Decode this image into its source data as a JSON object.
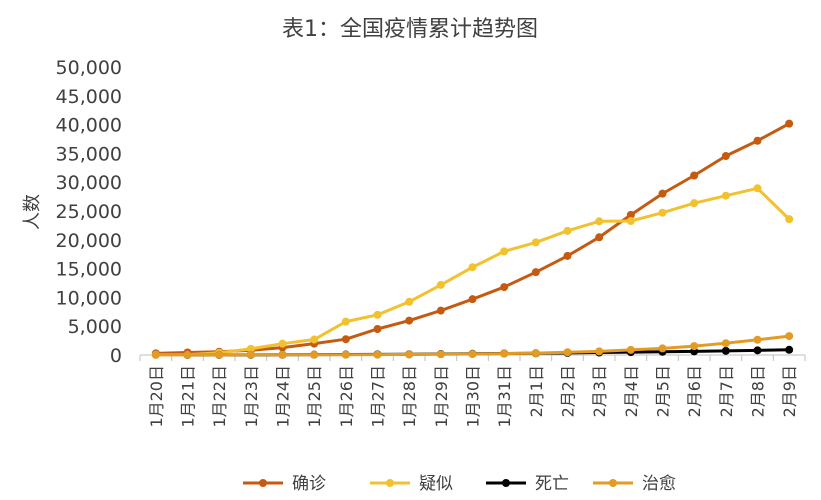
{
  "chart_data": {
    "type": "line",
    "title": "表1：全国疫情累计趋势图",
    "xlabel": "",
    "ylabel": "人数",
    "ylim": [
      0,
      50000
    ],
    "yticks": [
      0,
      5000,
      10000,
      15000,
      20000,
      25000,
      30000,
      35000,
      40000,
      45000,
      50000
    ],
    "ytick_labels": [
      "0",
      "5,000",
      "10,000",
      "15,000",
      "20,000",
      "25,000",
      "30,000",
      "35,000",
      "40,000",
      "45,000",
      "50,000"
    ],
    "grid": false,
    "legend_position": "bottom",
    "categories": [
      "1月20日",
      "1月21日",
      "1月22日",
      "1月23日",
      "1月24日",
      "1月25日",
      "1月26日",
      "1月27日",
      "1月28日",
      "1月29日",
      "1月30日",
      "1月31日",
      "2月1日",
      "2月2日",
      "2月3日",
      "2月4日",
      "2月5日",
      "2月6日",
      "2月7日",
      "2月8日",
      "2月9日"
    ],
    "series": [
      {
        "name": "确诊",
        "color": "#c55a11",
        "values": [
          291,
          440,
          571,
          830,
          1287,
          1975,
          2744,
          4515,
          5974,
          7711,
          9692,
          11791,
          14380,
          17205,
          20438,
          24324,
          28018,
          31161,
          34546,
          37198,
          40171
        ]
      },
      {
        "name": "疑似",
        "color": "#f2c12e",
        "values": [
          54,
          37,
          393,
          1072,
          1965,
          2684,
          5794,
          6973,
          9239,
          12167,
          15238,
          17988,
          19544,
          21558,
          23214,
          23260,
          24702,
          26359,
          27657,
          28942,
          23589
        ]
      },
      {
        "name": "死亡",
        "color": "#000000",
        "values": [
          null,
          9,
          17,
          25,
          41,
          56,
          80,
          106,
          132,
          170,
          213,
          259,
          304,
          361,
          425,
          490,
          563,
          636,
          722,
          811,
          908
        ]
      },
      {
        "name": "治愈",
        "color": "#e39b24",
        "values": [
          25,
          25,
          28,
          34,
          38,
          49,
          51,
          60,
          103,
          124,
          171,
          243,
          328,
          475,
          632,
          892,
          1153,
          1540,
          2050,
          2649,
          3281
        ]
      }
    ]
  }
}
